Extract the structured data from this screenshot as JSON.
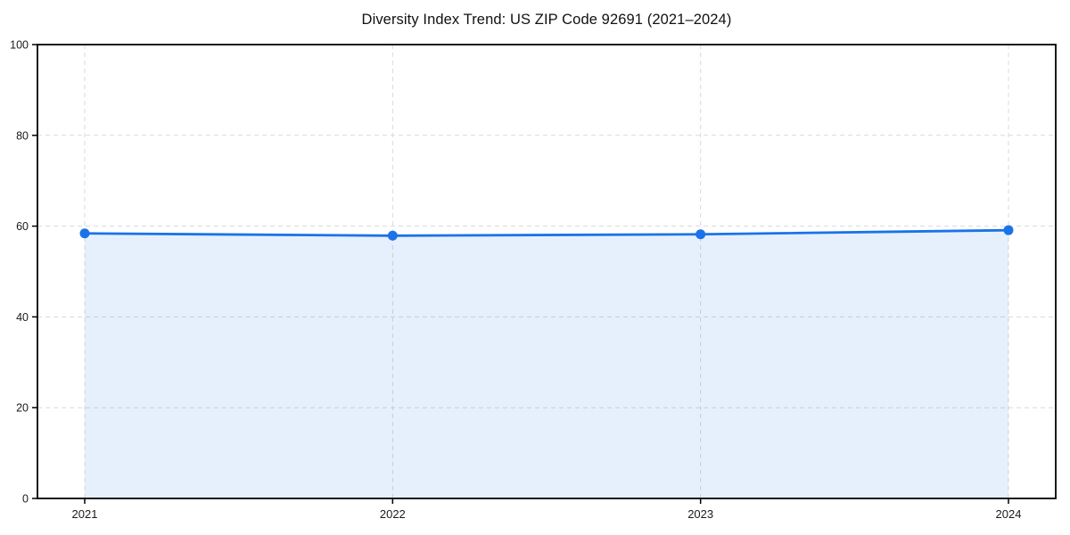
{
  "chart_data": {
    "type": "area",
    "title": "Diversity Index Trend: US ZIP Code 92691 (2021–2024)",
    "categories": [
      "2021",
      "2022",
      "2023",
      "2024"
    ],
    "values": [
      58.4,
      57.9,
      58.2,
      59.1
    ],
    "xlabel": "",
    "ylabel": "",
    "ylim": [
      0,
      100
    ],
    "yticks": [
      0,
      20,
      40,
      60,
      80,
      100
    ],
    "grid": "dashed",
    "legend": "none",
    "colors": {
      "line": "#1a73e8",
      "marker": "#1a73e8",
      "fill": "#1a73e8",
      "fill_opacity": 0.11,
      "gridline": "#d9d9d9",
      "spine": "#000000",
      "tick_label": "#1a1a1a",
      "title": "#111111",
      "background": "#ffffff"
    }
  }
}
